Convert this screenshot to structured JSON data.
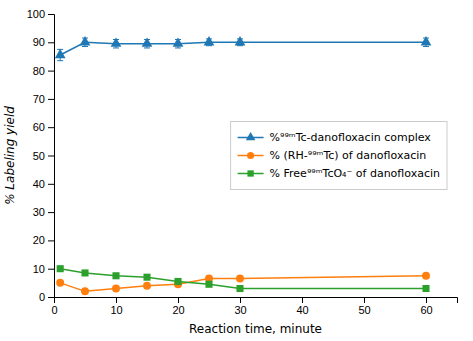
{
  "chart_data": {
    "type": "line",
    "x": [
      1,
      5,
      10,
      15,
      20,
      25,
      30,
      60
    ],
    "xlabel": "Reaction time, minute",
    "ylabel": "% Labeling yield",
    "xlim": [
      0,
      65
    ],
    "ylim": [
      0,
      100
    ],
    "xticks": [
      0,
      10,
      20,
      30,
      40,
      50,
      60
    ],
    "yticks": [
      0,
      10,
      20,
      30,
      40,
      50,
      60,
      70,
      80,
      90,
      100
    ],
    "legend": "center right",
    "series": [
      {
        "name": "%⁹⁹ᵐTc-danofloxacin complex",
        "marker": "triangle",
        "values": [
          85.5,
          90.0,
          89.5,
          89.5,
          89.5,
          90.0,
          90.0,
          90.0
        ],
        "errors": [
          2.0,
          1.5,
          1.5,
          1.5,
          1.5,
          1.2,
          1.2,
          1.5
        ]
      },
      {
        "name": "% (RH-⁹⁹ᵐTc) of danofloxacin",
        "marker": "circle",
        "values": [
          5.0,
          2.0,
          3.0,
          4.0,
          4.5,
          6.5,
          6.5,
          7.5
        ],
        "errors": [
          0.5,
          0.5,
          0.5,
          0.5,
          0.5,
          0.5,
          0.5,
          0.5
        ]
      },
      {
        "name": "% Free⁹⁹ᵐTcO₄⁻ of danofloxacin",
        "marker": "square",
        "values": [
          10.0,
          8.5,
          7.5,
          7.0,
          5.5,
          4.5,
          3.0,
          3.0
        ],
        "errors": [
          0.5,
          0.5,
          0.5,
          0.5,
          0.5,
          0.5,
          0.5,
          0.5
        ]
      }
    ]
  }
}
